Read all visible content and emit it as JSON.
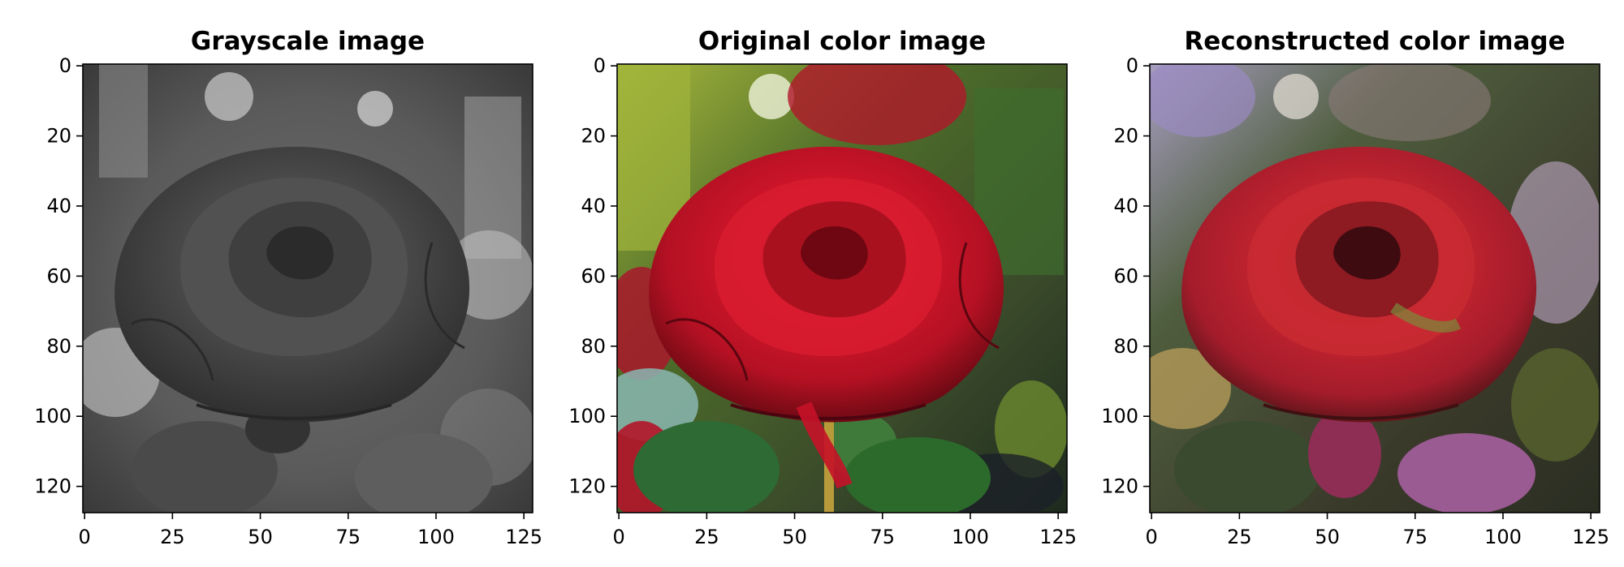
{
  "chart_data": [
    {
      "type": "image",
      "title": "Grayscale image",
      "xlabel": "",
      "ylabel": "",
      "xlim": [
        0,
        127
      ],
      "ylim": [
        127,
        0
      ],
      "xticks": [
        0,
        25,
        50,
        75,
        100,
        125
      ],
      "yticks": [
        0,
        20,
        40,
        60,
        80,
        100,
        120
      ],
      "colormap": "gray",
      "content": "rose"
    },
    {
      "type": "image",
      "title": "Original color image",
      "xlabel": "",
      "ylabel": "",
      "xlim": [
        0,
        127
      ],
      "ylim": [
        127,
        0
      ],
      "xticks": [
        0,
        25,
        50,
        75,
        100,
        125
      ],
      "yticks": [
        0,
        20,
        40,
        60,
        80,
        100,
        120
      ],
      "colormap": "rgb",
      "content": "rose"
    },
    {
      "type": "image",
      "title": "Reconstructed color image",
      "xlabel": "",
      "ylabel": "",
      "xlim": [
        0,
        127
      ],
      "ylim": [
        127,
        0
      ],
      "xticks": [
        0,
        25,
        50,
        75,
        100,
        125
      ],
      "yticks": [
        0,
        20,
        40,
        60,
        80,
        100,
        120
      ],
      "colormap": "rgb",
      "content": "rose"
    }
  ]
}
